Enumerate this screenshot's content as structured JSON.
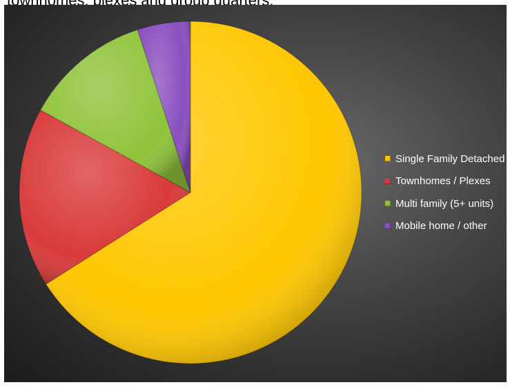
{
  "header": {
    "cut_text": "townhomes, plexes and group quarters."
  },
  "chart_data": {
    "type": "pie",
    "title": "",
    "categories": [
      "Single Family Detached",
      "Townhomes / Plexes",
      "Multi family (5+ units)",
      "Mobile home / other"
    ],
    "values": [
      66,
      17,
      12,
      5
    ],
    "colors": [
      "#FFC700",
      "#D93A3A",
      "#8FC33A",
      "#8A4FBF"
    ],
    "legend_position": "right",
    "start_angle_deg": 0,
    "direction": "clockwise"
  }
}
